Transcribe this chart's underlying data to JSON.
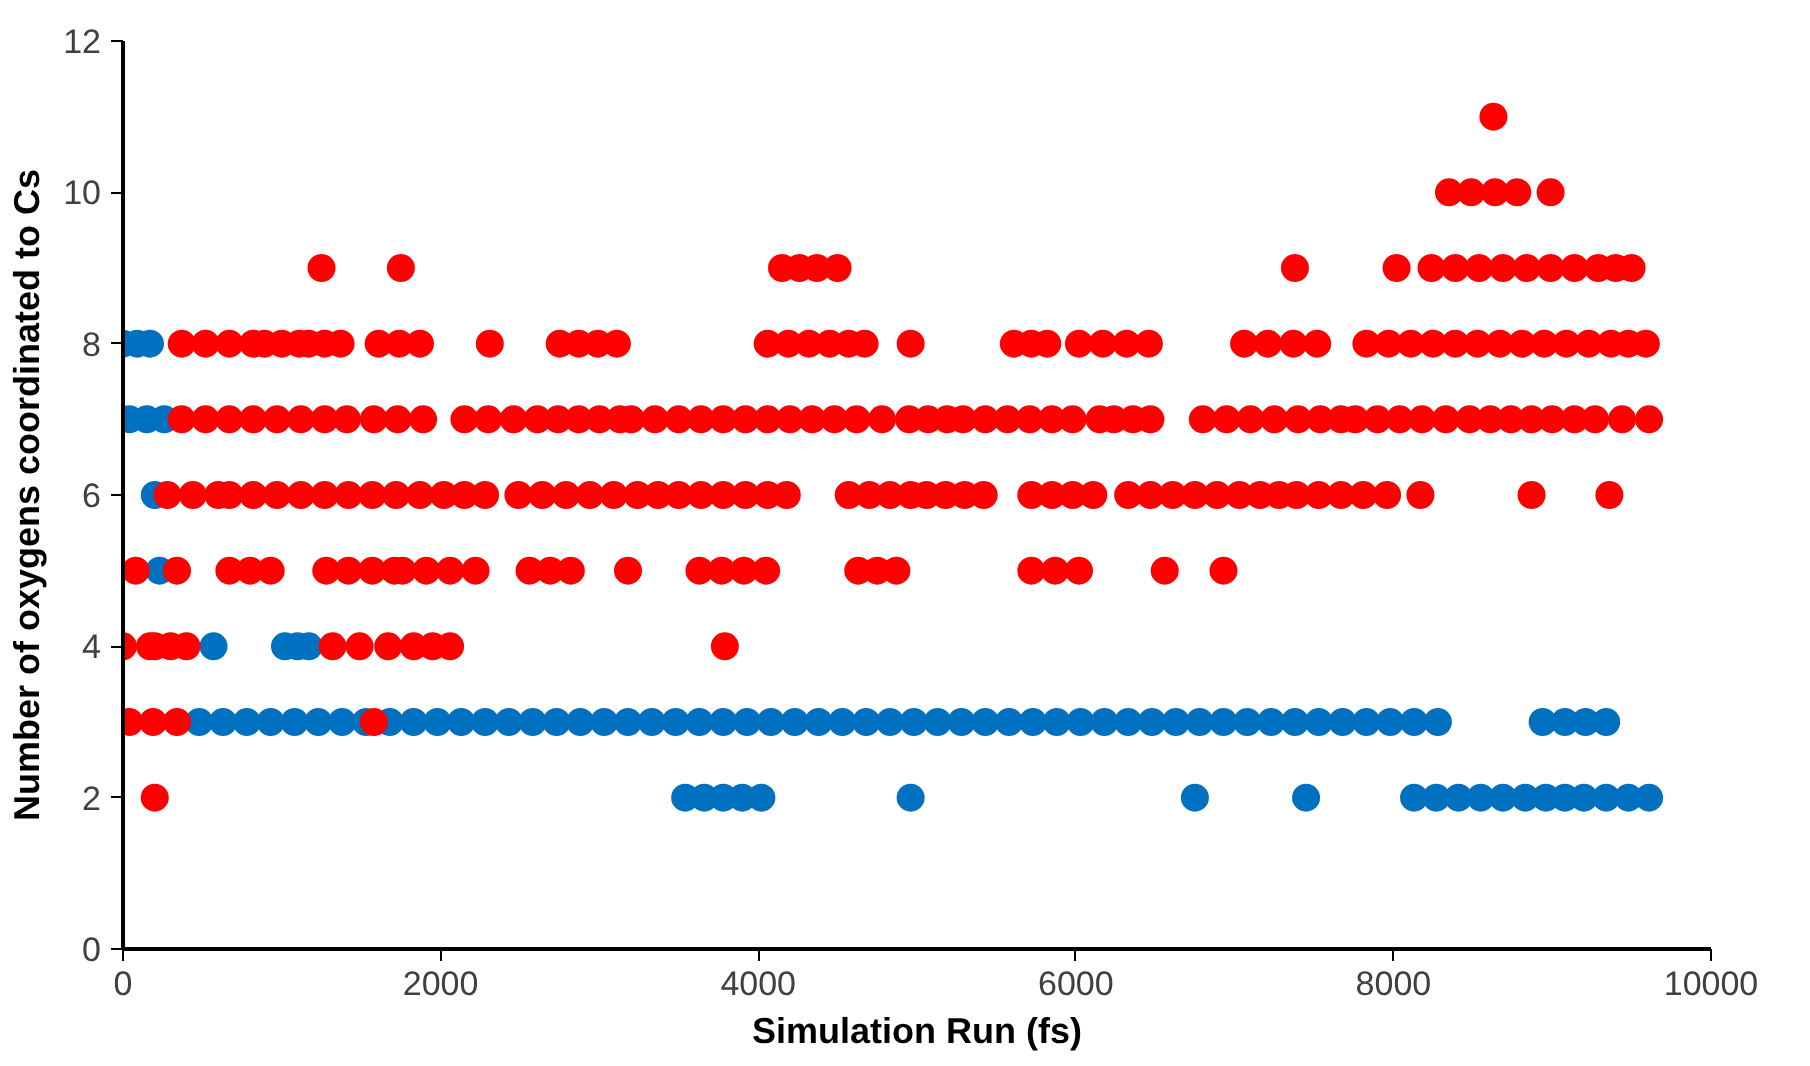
{
  "chart_data": {
    "type": "scatter",
    "xlabel": "Simulation Run (fs)",
    "ylabel": "Number of oxygens coordinated to Cs",
    "xlim": [
      0,
      10000
    ],
    "ylim": [
      0,
      12
    ],
    "xticks": [
      0,
      2000,
      4000,
      6000,
      8000,
      10000
    ],
    "yticks": [
      0,
      2,
      4,
      6,
      8,
      10,
      12
    ],
    "grid": false,
    "marker": "circle",
    "series": [
      {
        "color": "#0070c0",
        "x": [
          0,
          90,
          170,
          40,
          150,
          260,
          200,
          230,
          570,
          1020,
          1100,
          1170,
          480,
          630,
          780,
          930,
          1080,
          1230,
          1380,
          1530,
          1680,
          1830,
          1980,
          2130,
          2280,
          2430,
          2580,
          2730,
          2880,
          3030,
          3180,
          3330,
          3480,
          3630,
          3780,
          3930,
          4080,
          4230,
          4380,
          4530,
          4680,
          4830,
          4980,
          5130,
          5280,
          5430,
          5580,
          5730,
          5880,
          6030,
          6180,
          6330,
          6480,
          6630,
          6780,
          6930,
          7080,
          7230,
          7380,
          7530,
          7680,
          7830,
          7980,
          8130,
          8280,
          8940,
          9080,
          9210,
          9340,
          3540,
          3660,
          3780,
          3900,
          4020,
          4960,
          6750,
          7450,
          8130,
          8270,
          8410,
          8550,
          8690,
          8830,
          8960,
          9080,
          9200,
          9340,
          9480,
          9610
        ],
        "values": [
          8,
          8,
          8,
          7,
          7,
          7,
          6,
          5,
          4,
          4,
          4,
          4,
          3,
          3,
          3,
          3,
          3,
          3,
          3,
          3,
          3,
          3,
          3,
          3,
          3,
          3,
          3,
          3,
          3,
          3,
          3,
          3,
          3,
          3,
          3,
          3,
          3,
          3,
          3,
          3,
          3,
          3,
          3,
          3,
          3,
          3,
          3,
          3,
          3,
          3,
          3,
          3,
          3,
          3,
          3,
          3,
          3,
          3,
          3,
          3,
          3,
          3,
          3,
          3,
          3,
          3,
          3,
          3,
          3,
          2,
          2,
          2,
          2,
          2,
          2,
          2,
          2,
          2,
          2,
          2,
          2,
          2,
          2,
          2,
          2,
          2,
          2,
          2,
          2
        ]
      },
      {
        "color": "#ff0000",
        "x": [
          200,
          40,
          190,
          340,
          1580,
          0,
          170,
          200,
          300,
          400,
          1320,
          1490,
          1670,
          1830,
          1950,
          2060,
          3790,
          80,
          340,
          670,
          800,
          930,
          1280,
          1420,
          1570,
          1710,
          1760,
          1910,
          2060,
          2220,
          2560,
          2690,
          2820,
          3180,
          3630,
          3770,
          3910,
          4050,
          4630,
          4750,
          4870,
          5720,
          5870,
          6020,
          6560,
          6930,
          280,
          440,
          600,
          670,
          820,
          970,
          1120,
          1270,
          1420,
          1570,
          1720,
          1870,
          2020,
          2150,
          2280,
          2490,
          2640,
          2790,
          2940,
          3090,
          3240,
          3370,
          3500,
          3640,
          3780,
          3920,
          4060,
          4180,
          4570,
          4700,
          4830,
          4960,
          5060,
          5180,
          5300,
          5420,
          5720,
          5850,
          5980,
          6110,
          6330,
          6470,
          6610,
          6750,
          6890,
          7030,
          7160,
          7280,
          7390,
          7530,
          7670,
          7810,
          7960,
          8170,
          8870,
          9360,
          370,
          520,
          670,
          820,
          970,
          1120,
          1270,
          1410,
          1580,
          1730,
          1890,
          2150,
          2300,
          2460,
          2610,
          2740,
          2870,
          3000,
          3130,
          3200,
          3350,
          3500,
          3640,
          3780,
          3920,
          4060,
          4200,
          4340,
          4480,
          4620,
          4780,
          4950,
          5070,
          5190,
          5290,
          5430,
          5570,
          5710,
          5850,
          5980,
          6150,
          6240,
          6360,
          6470,
          6800,
          6950,
          7100,
          7250,
          7400,
          7540,
          7670,
          7760,
          7900,
          8040,
          8180,
          8330,
          8480,
          8610,
          8740,
          8870,
          9000,
          9140,
          9270,
          9440,
          9610,
          370,
          520,
          670,
          820,
          890,
          1000,
          1110,
          1170,
          1270,
          1370,
          1610,
          1740,
          1870,
          2310,
          2750,
          2870,
          2990,
          3110,
          4060,
          4190,
          4320,
          4450,
          4570,
          4670,
          4960,
          5610,
          5720,
          5820,
          6020,
          6170,
          6320,
          6460,
          7060,
          7210,
          7370,
          7520,
          7830,
          7970,
          8110,
          8250,
          8390,
          8530,
          8670,
          8810,
          8950,
          9090,
          9230,
          9370,
          9480,
          9590,
          1250,
          1750,
          4150,
          4260,
          4370,
          4500,
          7380,
          8020,
          8240,
          8390,
          8540,
          8690,
          8840,
          8990,
          9140,
          9290,
          9400,
          9500,
          8350,
          8490,
          8640,
          8780,
          8990,
          8630
        ],
        "values": [
          2,
          3,
          3,
          3,
          3,
          4,
          4,
          4,
          4,
          4,
          4,
          4,
          4,
          4,
          4,
          4,
          4,
          5,
          5,
          5,
          5,
          5,
          5,
          5,
          5,
          5,
          5,
          5,
          5,
          5,
          5,
          5,
          5,
          5,
          5,
          5,
          5,
          5,
          5,
          5,
          5,
          5,
          5,
          5,
          5,
          5,
          6,
          6,
          6,
          6,
          6,
          6,
          6,
          6,
          6,
          6,
          6,
          6,
          6,
          6,
          6,
          6,
          6,
          6,
          6,
          6,
          6,
          6,
          6,
          6,
          6,
          6,
          6,
          6,
          6,
          6,
          6,
          6,
          6,
          6,
          6,
          6,
          6,
          6,
          6,
          6,
          6,
          6,
          6,
          6,
          6,
          6,
          6,
          6,
          6,
          6,
          6,
          6,
          6,
          6,
          6,
          6,
          7,
          7,
          7,
          7,
          7,
          7,
          7,
          7,
          7,
          7,
          7,
          7,
          7,
          7,
          7,
          7,
          7,
          7,
          7,
          7,
          7,
          7,
          7,
          7,
          7,
          7,
          7,
          7,
          7,
          7,
          7,
          7,
          7,
          7,
          7,
          7,
          7,
          7,
          7,
          7,
          7,
          7,
          7,
          7,
          7,
          7,
          7,
          7,
          7,
          7,
          7,
          7,
          7,
          7,
          7,
          7,
          7,
          7,
          7,
          7,
          7,
          7,
          7,
          7,
          7,
          8,
          8,
          8,
          8,
          8,
          8,
          8,
          8,
          8,
          8,
          8,
          8,
          8,
          8,
          8,
          8,
          8,
          8,
          8,
          8,
          8,
          8,
          8,
          8,
          8,
          8,
          8,
          8,
          8,
          8,
          8,
          8,
          8,
          8,
          8,
          8,
          8,
          8,
          8,
          8,
          8,
          8,
          8,
          8,
          8,
          8,
          8,
          8,
          8,
          8,
          9,
          9,
          9,
          9,
          9,
          9,
          9,
          9,
          9,
          9,
          9,
          9,
          9,
          9,
          9,
          9,
          9,
          9,
          10,
          10,
          10,
          10,
          10,
          11
        ]
      }
    ]
  }
}
